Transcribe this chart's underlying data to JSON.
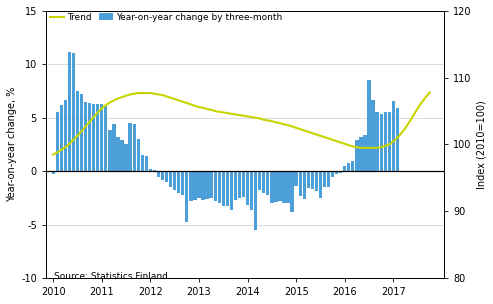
{
  "bar_color": "#4d9fda",
  "trend_color": "#c8d400",
  "background_color": "#ffffff",
  "grid_color": "#cccccc",
  "ylabel_left": "Year-on-year change, %",
  "ylabel_right": "Index (2010=100)",
  "ylim_left": [
    -10,
    15
  ],
  "ylim_right": [
    80,
    120
  ],
  "xlim_left": 2009.85,
  "xlim_right": 2018.05,
  "xticks": [
    2010,
    2011,
    2012,
    2013,
    2014,
    2015,
    2016,
    2017
  ],
  "yticks_left": [
    -10,
    -5,
    0,
    5,
    10,
    15
  ],
  "yticks_right": [
    80,
    90,
    100,
    110,
    120
  ],
  "source_text": "Source: Statistics Finland",
  "legend_trend": "Trend",
  "legend_bar": "Year-on-year change by three-month",
  "bar_width": 0.068,
  "bar_heights": [
    -0.3,
    5.5,
    6.2,
    6.7,
    11.2,
    11.1,
    7.5,
    7.2,
    6.5,
    6.4,
    6.3,
    6.3,
    6.3,
    6.1,
    3.9,
    4.4,
    3.2,
    2.9,
    2.5,
    4.5,
    4.4,
    3.0,
    1.5,
    1.4,
    0.2,
    0.1,
    -0.5,
    -0.8,
    -1.0,
    -1.5,
    -1.8,
    -2.0,
    -2.2,
    -4.8,
    -2.8,
    -2.7,
    -2.5,
    -2.7,
    -2.6,
    -2.5,
    -2.8,
    -3.0,
    -3.3,
    -3.3,
    -3.6,
    -2.7,
    -2.5,
    -2.4,
    -3.2,
    -3.6,
    -5.5,
    -1.8,
    -2.0,
    -2.2,
    -3.0,
    -2.9,
    -2.8,
    -3.0,
    -3.0,
    -3.8,
    -1.4,
    -2.3,
    -2.6,
    -1.6,
    -1.7,
    -1.9,
    -2.5,
    -1.5,
    -1.5,
    -0.5,
    -0.3,
    -0.2,
    0.5,
    0.8,
    1.0,
    2.9,
    3.2,
    3.4,
    8.5,
    6.7,
    5.5,
    5.4,
    5.5,
    5.5,
    6.6,
    5.9
  ],
  "bar_x_start": 2010.0,
  "trend_points": [
    [
      2010.0,
      98.5
    ],
    [
      2010.083,
      98.8
    ],
    [
      2010.167,
      99.2
    ],
    [
      2010.25,
      99.6
    ],
    [
      2010.333,
      100.1
    ],
    [
      2010.417,
      100.7
    ],
    [
      2010.5,
      101.3
    ],
    [
      2010.583,
      102.0
    ],
    [
      2010.667,
      102.7
    ],
    [
      2010.75,
      103.4
    ],
    [
      2010.833,
      104.1
    ],
    [
      2010.917,
      104.8
    ],
    [
      2011.0,
      105.4
    ],
    [
      2011.083,
      105.9
    ],
    [
      2011.167,
      106.3
    ],
    [
      2011.25,
      106.6
    ],
    [
      2011.333,
      106.9
    ],
    [
      2011.417,
      107.1
    ],
    [
      2011.5,
      107.3
    ],
    [
      2011.583,
      107.5
    ],
    [
      2011.667,
      107.6
    ],
    [
      2011.75,
      107.7
    ],
    [
      2011.833,
      107.7
    ],
    [
      2011.917,
      107.7
    ],
    [
      2012.0,
      107.7
    ],
    [
      2012.083,
      107.6
    ],
    [
      2012.167,
      107.5
    ],
    [
      2012.25,
      107.4
    ],
    [
      2012.333,
      107.2
    ],
    [
      2012.417,
      107.0
    ],
    [
      2012.5,
      106.8
    ],
    [
      2012.583,
      106.6
    ],
    [
      2012.667,
      106.4
    ],
    [
      2012.75,
      106.2
    ],
    [
      2012.833,
      106.0
    ],
    [
      2012.917,
      105.8
    ],
    [
      2013.0,
      105.6
    ],
    [
      2013.083,
      105.5
    ],
    [
      2013.167,
      105.3
    ],
    [
      2013.25,
      105.2
    ],
    [
      2013.333,
      105.0
    ],
    [
      2013.417,
      104.9
    ],
    [
      2013.5,
      104.8
    ],
    [
      2013.583,
      104.7
    ],
    [
      2013.667,
      104.6
    ],
    [
      2013.75,
      104.5
    ],
    [
      2013.833,
      104.4
    ],
    [
      2013.917,
      104.3
    ],
    [
      2014.0,
      104.2
    ],
    [
      2014.083,
      104.1
    ],
    [
      2014.167,
      104.0
    ],
    [
      2014.25,
      103.9
    ],
    [
      2014.333,
      103.7
    ],
    [
      2014.417,
      103.6
    ],
    [
      2014.5,
      103.5
    ],
    [
      2014.583,
      103.3
    ],
    [
      2014.667,
      103.2
    ],
    [
      2014.75,
      103.0
    ],
    [
      2014.833,
      102.9
    ],
    [
      2014.917,
      102.7
    ],
    [
      2015.0,
      102.5
    ],
    [
      2015.083,
      102.3
    ],
    [
      2015.167,
      102.1
    ],
    [
      2015.25,
      101.9
    ],
    [
      2015.333,
      101.7
    ],
    [
      2015.417,
      101.5
    ],
    [
      2015.5,
      101.3
    ],
    [
      2015.583,
      101.1
    ],
    [
      2015.667,
      100.9
    ],
    [
      2015.75,
      100.7
    ],
    [
      2015.833,
      100.5
    ],
    [
      2015.917,
      100.3
    ],
    [
      2016.0,
      100.1
    ],
    [
      2016.083,
      99.9
    ],
    [
      2016.167,
      99.7
    ],
    [
      2016.25,
      99.6
    ],
    [
      2016.333,
      99.5
    ],
    [
      2016.417,
      99.5
    ],
    [
      2016.5,
      99.5
    ],
    [
      2016.583,
      99.5
    ],
    [
      2016.667,
      99.5
    ],
    [
      2016.75,
      99.6
    ],
    [
      2016.833,
      99.8
    ],
    [
      2016.917,
      100.0
    ],
    [
      2017.0,
      100.5
    ],
    [
      2017.083,
      101.0
    ],
    [
      2017.167,
      101.7
    ],
    [
      2017.25,
      102.5
    ],
    [
      2017.333,
      103.4
    ],
    [
      2017.417,
      104.4
    ],
    [
      2017.5,
      105.4
    ],
    [
      2017.583,
      106.3
    ],
    [
      2017.667,
      107.1
    ],
    [
      2017.75,
      107.8
    ]
  ]
}
